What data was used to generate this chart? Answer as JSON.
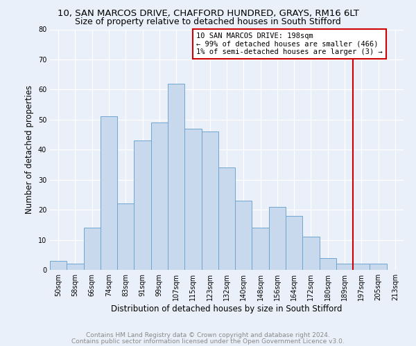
{
  "title": "10, SAN MARCOS DRIVE, CHAFFORD HUNDRED, GRAYS, RM16 6LT",
  "subtitle": "Size of property relative to detached houses in South Stifford",
  "xlabel": "Distribution of detached houses by size in South Stifford",
  "ylabel": "Number of detached properties",
  "bar_labels": [
    "50sqm",
    "58sqm",
    "66sqm",
    "74sqm",
    "83sqm",
    "91sqm",
    "99sqm",
    "107sqm",
    "115sqm",
    "123sqm",
    "132sqm",
    "140sqm",
    "148sqm",
    "156sqm",
    "164sqm",
    "172sqm",
    "180sqm",
    "189sqm",
    "197sqm",
    "205sqm",
    "213sqm"
  ],
  "bar_heights": [
    3,
    2,
    14,
    51,
    22,
    43,
    49,
    62,
    47,
    46,
    34,
    23,
    14,
    21,
    18,
    11,
    4,
    2,
    2,
    2,
    0
  ],
  "bar_color": "#c9d9ed",
  "bar_edge_color": "#6ea6d0",
  "red_line_index": 18,
  "annotation_text": "10 SAN MARCOS DRIVE: 198sqm\n← 99% of detached houses are smaller (466)\n1% of semi-detached houses are larger (3) →",
  "annotation_box_facecolor": "#ffffff",
  "annotation_box_edgecolor": "#cc0000",
  "red_line_color": "#cc0000",
  "ylim": [
    0,
    80
  ],
  "yticks": [
    0,
    10,
    20,
    30,
    40,
    50,
    60,
    70,
    80
  ],
  "footer1": "Contains HM Land Registry data © Crown copyright and database right 2024.",
  "footer2": "Contains public sector information licensed under the Open Government Licence v3.0.",
  "background_color": "#eaf0f9",
  "title_fontsize": 9.5,
  "subtitle_fontsize": 9,
  "axis_label_fontsize": 8.5,
  "tick_fontsize": 7,
  "annotation_fontsize": 7.5,
  "footer_fontsize": 6.5
}
